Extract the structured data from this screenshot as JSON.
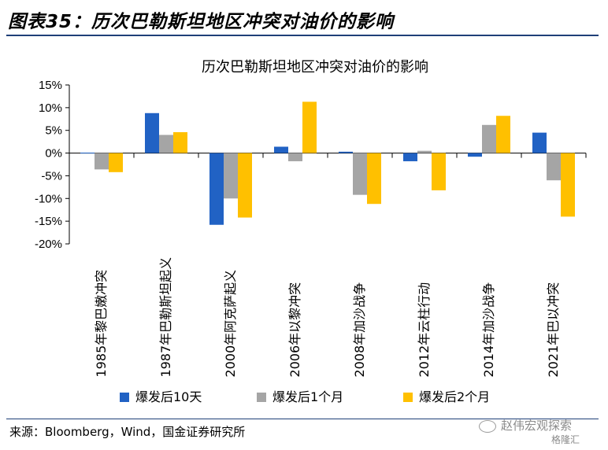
{
  "figure_title": "图表35：历次巴勒斯坦地区冲突对油价的影响",
  "source": "来源：Bloomberg，Wind，国金证券研究所",
  "watermark": "赵伟宏观探索",
  "watermark_sub": "格隆汇",
  "colors": {
    "s1": "#2162c4",
    "s2": "#a5a5a5",
    "s3": "#ffc000",
    "rule": "#1f3f78"
  },
  "chart_data": {
    "type": "bar",
    "title": "历次巴勒斯坦地区冲突对油价的影响",
    "categories": [
      "1985年黎巴嫩冲突",
      "1987年巴勒斯坦起义",
      "2000年阿克萨起义",
      "2006年以黎冲突",
      "2008年加沙战争",
      "2012年云柱行动",
      "2014年加沙战争",
      "2021年巴以冲突"
    ],
    "series": [
      {
        "name": "爆发后10天",
        "values": [
          0.1,
          8.8,
          -15.8,
          1.4,
          0.3,
          -1.8,
          -0.8,
          4.5
        ]
      },
      {
        "name": "爆发后1个月",
        "values": [
          -3.6,
          4.0,
          -10.0,
          -1.8,
          -9.2,
          0.5,
          6.2,
          -6.0
        ]
      },
      {
        "name": "爆发后2个月",
        "values": [
          -4.2,
          4.6,
          -14.2,
          11.3,
          -11.2,
          -8.2,
          8.2,
          -14.0
        ]
      }
    ],
    "ylim": [
      -20,
      15
    ],
    "yticks": [
      "-20%",
      "-15%",
      "-10%",
      "-5%",
      "0%",
      "5%",
      "10%",
      "15%"
    ],
    "xlabel": "",
    "ylabel": "",
    "legend_position": "bottom",
    "grid": false
  }
}
